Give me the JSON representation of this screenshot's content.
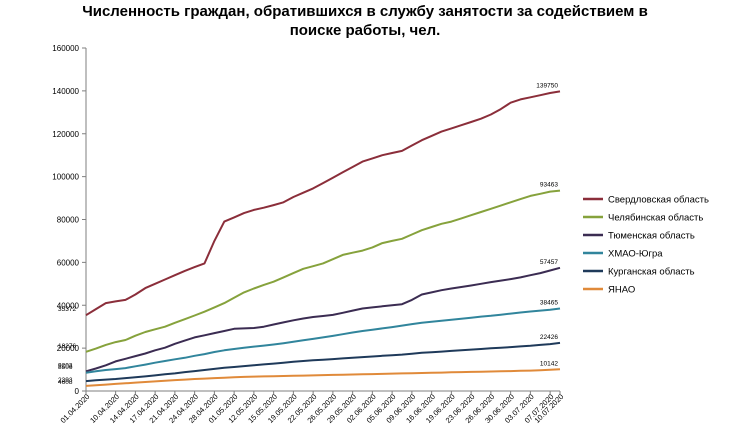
{
  "chart_data": {
    "type": "line",
    "title": "Численность граждан, обратившихся в службу занятости за содействием в поиске работы, чел.",
    "ylim": [
      0,
      160000
    ],
    "yticks": [
      0,
      20000,
      40000,
      60000,
      80000,
      100000,
      120000,
      140000,
      160000
    ],
    "legend": "right",
    "grid": false,
    "x": [
      "01.04.2020",
      "03.04.2020",
      "07.04.2020",
      "10.04.2020",
      "14.04.2020",
      "15.04.2020",
      "17.04.2020",
      "20.04.2020",
      "21.04.2020",
      "23.04.2020",
      "24.04.2020",
      "27.04.2020",
      "28.04.2020",
      "30.04.2020",
      "01.05.2020",
      "08.05.2020",
      "12.05.2020",
      "14.05.2020",
      "15.05.2020",
      "18.05.2020",
      "19.05.2020",
      "21.05.2020",
      "22.05.2020",
      "25.05.2020",
      "26.05.2020",
      "28.05.2020",
      "29.05.2020",
      "01.06.2020",
      "02.06.2020",
      "04.06.2020",
      "05.06.2020",
      "08.06.2020",
      "09.06.2020",
      "11.06.2020",
      "16.06.2020",
      "18.06.2020",
      "19.06.2020",
      "22.06.2020",
      "23.06.2020",
      "25.06.2020",
      "26.06.2020",
      "29.06.2020",
      "30.06.2020",
      "02.07.2020",
      "03.07.2020",
      "06.07.2020",
      "07.07.2020",
      "09.07.2020",
      "10.07.2020"
    ],
    "x_tick_labels": [
      "01.04.2020",
      "10.04.2020",
      "14.04.2020",
      "17.04.2020",
      "21.04.2020",
      "24.04.2020",
      "28.04.2020",
      "01.05.2020",
      "12.05.2020",
      "15.05.2020",
      "19.05.2020",
      "22.05.2020",
      "26.05.2020",
      "29.05.2020",
      "02.06.2020",
      "05.06.2020",
      "09.06.2020",
      "16.06.2020",
      "19.06.2020",
      "23.06.2020",
      "26.06.2020",
      "30.06.2020",
      "03.07.2020",
      "07.07.2020",
      "10.07.2020"
    ],
    "x_tick_index": [
      0,
      3,
      5,
      7,
      9,
      11,
      13,
      15,
      17,
      19,
      21,
      23,
      25,
      27,
      29,
      31,
      33,
      35,
      37,
      39,
      41,
      43,
      45,
      47,
      48
    ],
    "series": [
      {
        "name": "Свердловская область",
        "color": "#8b2e3a",
        "first_label": "35372",
        "last_label": "139750",
        "values": [
          35372,
          38200,
          41000,
          41800,
          42500,
          45000,
          48000,
          50000,
          52000,
          54000,
          56000,
          57800,
          59500,
          70000,
          79000,
          81000,
          83000,
          84500,
          85500,
          86700,
          88000,
          90500,
          92500,
          94500,
          97000,
          99500,
          102000,
          104500,
          107000,
          108500,
          110000,
          111000,
          112000,
          114500,
          117000,
          119000,
          121000,
          122500,
          124000,
          125500,
          127000,
          129000,
          131500,
          134500,
          136000,
          137000,
          138000,
          139000,
          139750
        ]
      },
      {
        "name": "Челябинская область",
        "color": "#86a23c",
        "first_label": "18276",
        "last_label": "93463",
        "values": [
          18276,
          19800,
          21500,
          22800,
          23800,
          25800,
          27500,
          28800,
          30000,
          31800,
          33500,
          35200,
          37000,
          39000,
          41000,
          43500,
          46000,
          47800,
          49500,
          51000,
          53000,
          55000,
          57000,
          58200,
          59500,
          61500,
          63500,
          64500,
          65500,
          67000,
          69000,
          70000,
          71000,
          73000,
          75000,
          76500,
          78000,
          79000,
          80500,
          82000,
          83500,
          85000,
          86500,
          88000,
          89500,
          91000,
          92000,
          93000,
          93463
        ]
      },
      {
        "name": "Тюменская область",
        "color": "#3b2c52",
        "first_label": "9203",
        "last_label": "57457",
        "values": [
          9203,
          10500,
          12000,
          13800,
          15000,
          16300,
          17500,
          19000,
          20200,
          22000,
          23500,
          25000,
          26000,
          27000,
          28000,
          29000,
          29200,
          29400,
          30000,
          31000,
          32000,
          33000,
          33800,
          34500,
          35000,
          35500,
          36500,
          37500,
          38500,
          39000,
          39500,
          40000,
          40500,
          42500,
          45000,
          46000,
          47000,
          47800,
          48500,
          49200,
          50000,
          50800,
          51500,
          52200,
          53000,
          54000,
          55000,
          56200,
          57457
        ]
      },
      {
        "name": "ХМАО-Югра",
        "color": "#31859c",
        "first_label": "8506",
        "last_label": "38465",
        "values": [
          8506,
          9200,
          9800,
          10200,
          10700,
          11500,
          12300,
          13200,
          14000,
          14800,
          15500,
          16400,
          17200,
          18200,
          19000,
          19600,
          20200,
          20700,
          21200,
          21700,
          22300,
          23000,
          23700,
          24300,
          25000,
          25700,
          26500,
          27300,
          28000,
          28600,
          29200,
          29800,
          30500,
          31200,
          31800,
          32300,
          32800,
          33200,
          33700,
          34200,
          34700,
          35100,
          35600,
          36100,
          36600,
          37100,
          37500,
          37900,
          38465
        ]
      },
      {
        "name": "Курганская область",
        "color": "#1f3a5a",
        "first_label": "4608",
        "last_label": "22426",
        "values": [
          4608,
          5000,
          5300,
          5600,
          6000,
          6400,
          6800,
          7300,
          7800,
          8200,
          8800,
          9300,
          9800,
          10300,
          10800,
          11200,
          11600,
          12000,
          12400,
          12800,
          13200,
          13600,
          14000,
          14300,
          14600,
          14900,
          15200,
          15500,
          15800,
          16100,
          16400,
          16700,
          17000,
          17400,
          17800,
          18100,
          18400,
          18700,
          19000,
          19300,
          19600,
          19900,
          20200,
          20500,
          20800,
          21100,
          21500,
          21900,
          22426
        ]
      },
      {
        "name": "ЯНАО",
        "color": "#e08a3a",
        "first_label": "2393",
        "last_label": "10142",
        "values": [
          2393,
          2700,
          3000,
          3300,
          3600,
          3900,
          4200,
          4500,
          4800,
          5100,
          5300,
          5600,
          5800,
          6000,
          6200,
          6400,
          6600,
          6700,
          6800,
          6900,
          7000,
          7100,
          7200,
          7300,
          7400,
          7500,
          7600,
          7700,
          7800,
          7900,
          8000,
          8100,
          8200,
          8300,
          8400,
          8500,
          8600,
          8700,
          8800,
          8900,
          9000,
          9100,
          9200,
          9300,
          9400,
          9500,
          9700,
          9900,
          10142
        ]
      }
    ]
  }
}
